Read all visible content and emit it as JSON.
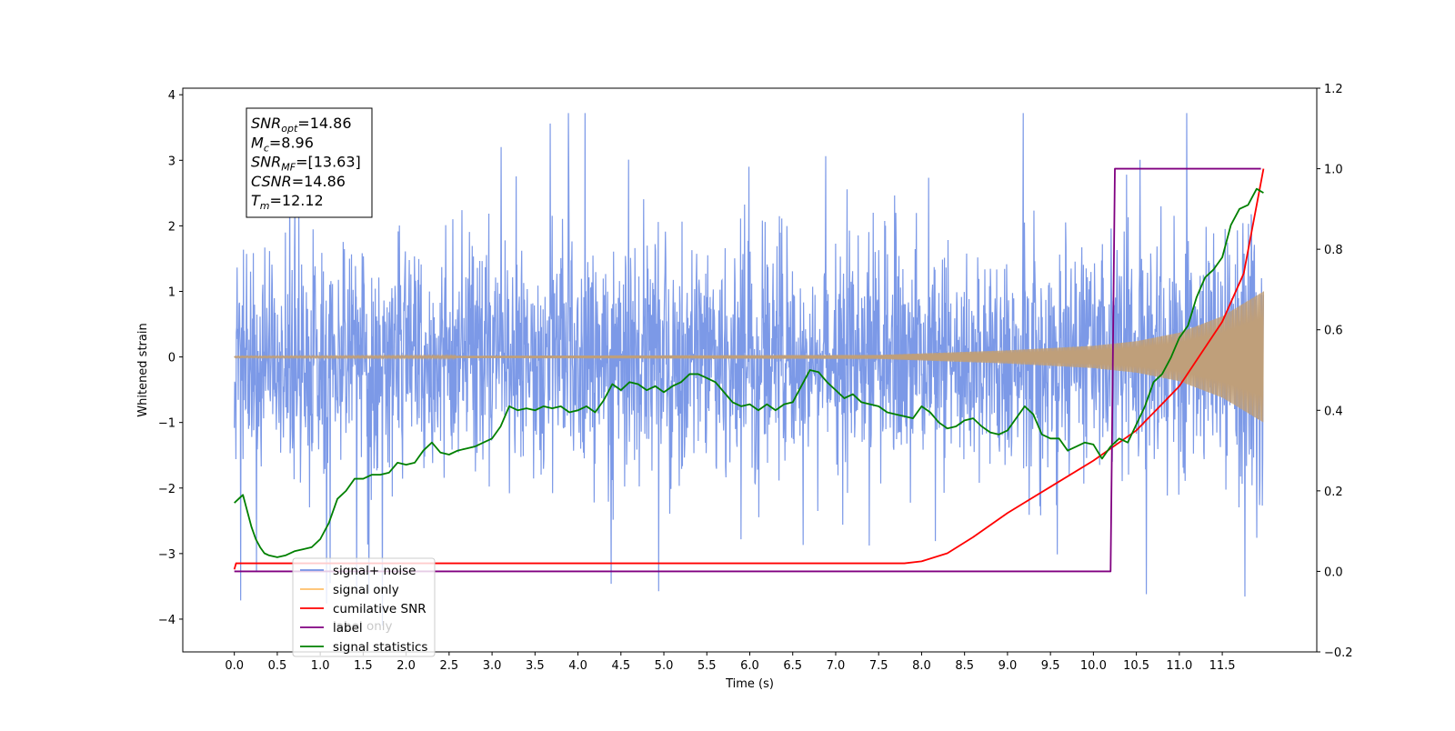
{
  "chart_data": {
    "type": "line",
    "xlabel": "Time (s)",
    "ylabel": "Whitened strain",
    "xlim": [
      -0.6,
      12.6
    ],
    "ylim": [
      -4.5,
      4.1
    ],
    "ylim_right": [
      -0.2,
      1.2
    ],
    "x_ticks": [
      "0.0",
      "0.5",
      "1.0",
      "1.5",
      "2.0",
      "2.5",
      "3.0",
      "3.5",
      "4.0",
      "4.5",
      "5.0",
      "5.5",
      "6.0",
      "6.5",
      "7.0",
      "7.5",
      "8.0",
      "8.5",
      "9.0",
      "9.5",
      "10.0",
      "10.5",
      "11.0",
      "11.5"
    ],
    "y_ticks_left": [
      "−4",
      "−3",
      "−2",
      "−1",
      "0",
      "1",
      "2",
      "3",
      "4"
    ],
    "y_ticks_right": [
      "−0.2",
      "0.0",
      "0.2",
      "0.4",
      "0.6",
      "0.8",
      "1.0",
      "1.2"
    ],
    "annotation": {
      "lines": [
        {
          "base": "SNR",
          "sub": "opt",
          "value": "=14.86"
        },
        {
          "base": "M",
          "sub": "c",
          "value": "=8.96"
        },
        {
          "base": "SNR",
          "sub": "MF",
          "value": "=[13.63]"
        },
        {
          "base": "CSNR",
          "sub": "",
          "value": "=14.86"
        },
        {
          "base": "T",
          "sub": "m",
          "value": "=12.12"
        }
      ]
    },
    "legend": {
      "placement": "lower-left",
      "entries": [
        {
          "label": "signal+ noise",
          "color": "#7593e6"
        },
        {
          "label": "signal only",
          "color": "#ffbf6a"
        },
        {
          "label": "cumilative SNR",
          "color": "#ff0000"
        },
        {
          "label": "label",
          "color": "#800080"
        },
        {
          "label": "signal statistics",
          "color": "#008000"
        }
      ],
      "occluded_text": "label only"
    },
    "series": [
      {
        "name": "signal+ noise",
        "axis": "left",
        "color": "#7593e6",
        "note": "dense noisy strain, roughly +/-1.5 band with spikes",
        "x_range": [
          0.0,
          11.98
        ],
        "approx_max": 3.72,
        "approx_min": -4.1
      },
      {
        "name": "signal only",
        "axis": "left",
        "color": "#bf9f7a",
        "note": "chirp oscillation",
        "x_range": [
          0.0,
          11.98
        ],
        "amplitude_envelope": {
          "x": [
            0,
            7.5,
            9.0,
            10.0,
            10.5,
            11.0,
            11.5,
            11.98
          ],
          "amp": [
            0.01,
            0.03,
            0.1,
            0.17,
            0.24,
            0.37,
            0.62,
            1.0
          ]
        }
      },
      {
        "name": "cumilative SNR",
        "axis": "right",
        "color": "#ff0000",
        "x": [
          0.0,
          0.02,
          7.8,
          8.0,
          8.3,
          8.6,
          9.0,
          9.5,
          10.0,
          10.5,
          11.0,
          11.5,
          11.75,
          11.98
        ],
        "y": [
          0.005,
          0.02,
          0.02,
          0.025,
          0.045,
          0.085,
          0.145,
          0.21,
          0.275,
          0.35,
          0.46,
          0.62,
          0.74,
          1.0
        ]
      },
      {
        "name": "label",
        "axis": "right",
        "color": "#800080",
        "x": [
          0.0,
          10.2,
          10.25,
          11.95
        ],
        "y": [
          0.0,
          0.0,
          1.0,
          1.0
        ]
      },
      {
        "name": "signal statistics",
        "axis": "right",
        "color": "#008000",
        "x": [
          0.0,
          0.05,
          0.1,
          0.15,
          0.2,
          0.25,
          0.3,
          0.35,
          0.4,
          0.5,
          0.6,
          0.7,
          0.8,
          0.9,
          1.0,
          1.1,
          1.2,
          1.3,
          1.4,
          1.5,
          1.6,
          1.7,
          1.8,
          1.9,
          2.0,
          2.1,
          2.2,
          2.3,
          2.4,
          2.5,
          2.6,
          2.7,
          2.8,
          2.9,
          3.0,
          3.1,
          3.2,
          3.3,
          3.4,
          3.5,
          3.6,
          3.7,
          3.8,
          3.9,
          4.0,
          4.1,
          4.2,
          4.3,
          4.4,
          4.5,
          4.6,
          4.7,
          4.8,
          4.9,
          5.0,
          5.1,
          5.2,
          5.3,
          5.4,
          5.5,
          5.6,
          5.7,
          5.8,
          5.9,
          6.0,
          6.1,
          6.2,
          6.3,
          6.4,
          6.5,
          6.6,
          6.7,
          6.8,
          6.9,
          7.0,
          7.1,
          7.2,
          7.3,
          7.4,
          7.5,
          7.6,
          7.7,
          7.8,
          7.9,
          8.0,
          8.1,
          8.2,
          8.3,
          8.4,
          8.5,
          8.6,
          8.7,
          8.8,
          8.9,
          9.0,
          9.1,
          9.2,
          9.3,
          9.4,
          9.5,
          9.6,
          9.7,
          9.8,
          9.9,
          10.0,
          10.1,
          10.2,
          10.3,
          10.4,
          10.5,
          10.6,
          10.7,
          10.8,
          10.9,
          11.0,
          11.1,
          11.2,
          11.3,
          11.4,
          11.5,
          11.6,
          11.7,
          11.8,
          11.9,
          11.98
        ],
        "y": [
          0.17,
          0.18,
          0.19,
          0.15,
          0.11,
          0.08,
          0.06,
          0.045,
          0.04,
          0.035,
          0.04,
          0.05,
          0.055,
          0.06,
          0.08,
          0.12,
          0.18,
          0.2,
          0.23,
          0.23,
          0.24,
          0.24,
          0.245,
          0.27,
          0.265,
          0.27,
          0.3,
          0.32,
          0.295,
          0.29,
          0.3,
          0.305,
          0.31,
          0.32,
          0.33,
          0.36,
          0.41,
          0.4,
          0.405,
          0.4,
          0.41,
          0.405,
          0.41,
          0.395,
          0.4,
          0.41,
          0.395,
          0.425,
          0.465,
          0.45,
          0.47,
          0.465,
          0.45,
          0.46,
          0.445,
          0.46,
          0.47,
          0.49,
          0.49,
          0.48,
          0.47,
          0.445,
          0.42,
          0.41,
          0.415,
          0.4,
          0.415,
          0.4,
          0.415,
          0.42,
          0.46,
          0.5,
          0.495,
          0.47,
          0.45,
          0.43,
          0.44,
          0.42,
          0.415,
          0.41,
          0.395,
          0.39,
          0.385,
          0.38,
          0.41,
          0.395,
          0.37,
          0.355,
          0.36,
          0.375,
          0.38,
          0.36,
          0.345,
          0.34,
          0.35,
          0.38,
          0.41,
          0.39,
          0.34,
          0.33,
          0.33,
          0.3,
          0.31,
          0.32,
          0.315,
          0.28,
          0.31,
          0.33,
          0.32,
          0.365,
          0.41,
          0.47,
          0.49,
          0.53,
          0.58,
          0.61,
          0.68,
          0.73,
          0.75,
          0.78,
          0.86,
          0.9,
          0.91,
          0.95,
          0.94
        ]
      }
    ]
  }
}
